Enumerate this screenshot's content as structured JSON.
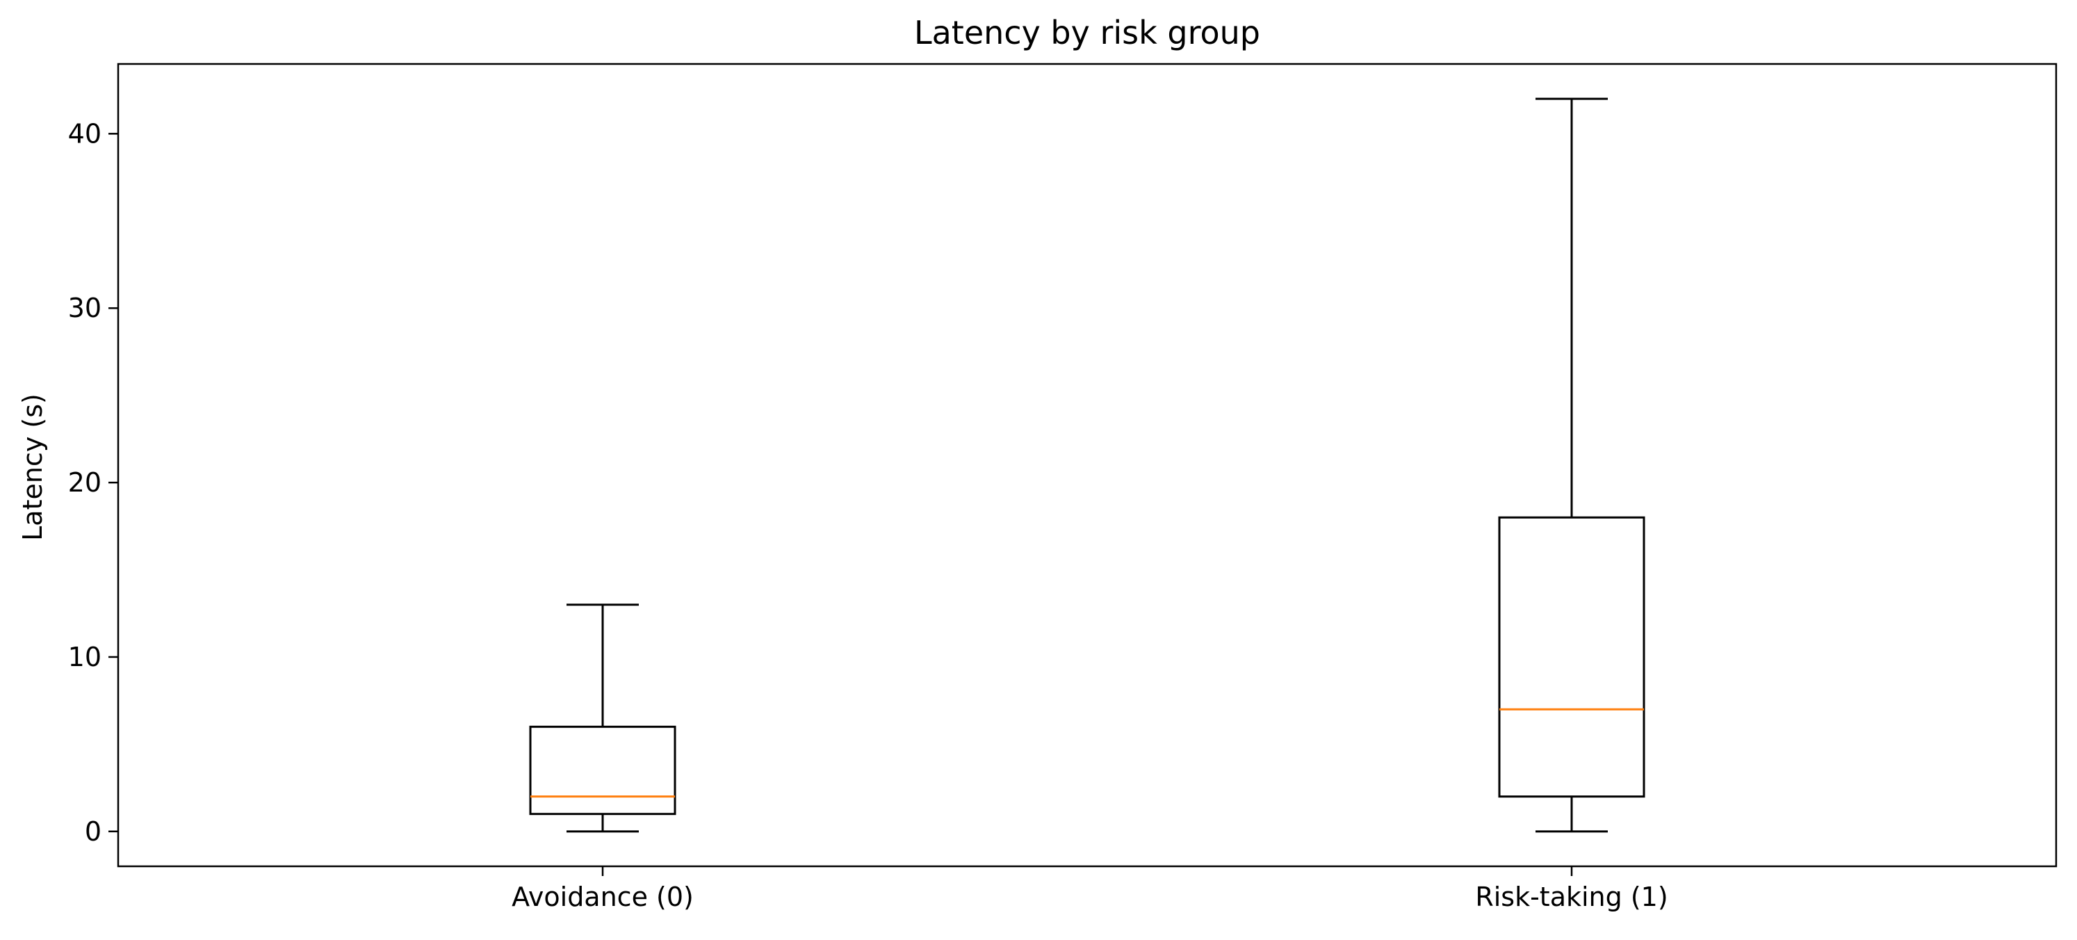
{
  "chart_data": {
    "type": "box",
    "title": "Latency by risk group",
    "xlabel": "",
    "ylabel": "Latency (s)",
    "ylim": [
      -2,
      44
    ],
    "yticks": [
      0,
      10,
      20,
      30,
      40
    ],
    "grid": false,
    "categories": [
      "Avoidance (0)",
      "Risk-taking (1)"
    ],
    "boxes": [
      {
        "category": "Avoidance (0)",
        "whisker_low": 0,
        "q1": 1,
        "median": 2,
        "q3": 6,
        "whisker_high": 13
      },
      {
        "category": "Risk-taking (1)",
        "whisker_low": 0,
        "q1": 2,
        "median": 7,
        "q3": 18,
        "whisker_high": 42
      }
    ],
    "colors": {
      "box": "#000000",
      "median": "#ff7f0e"
    }
  }
}
